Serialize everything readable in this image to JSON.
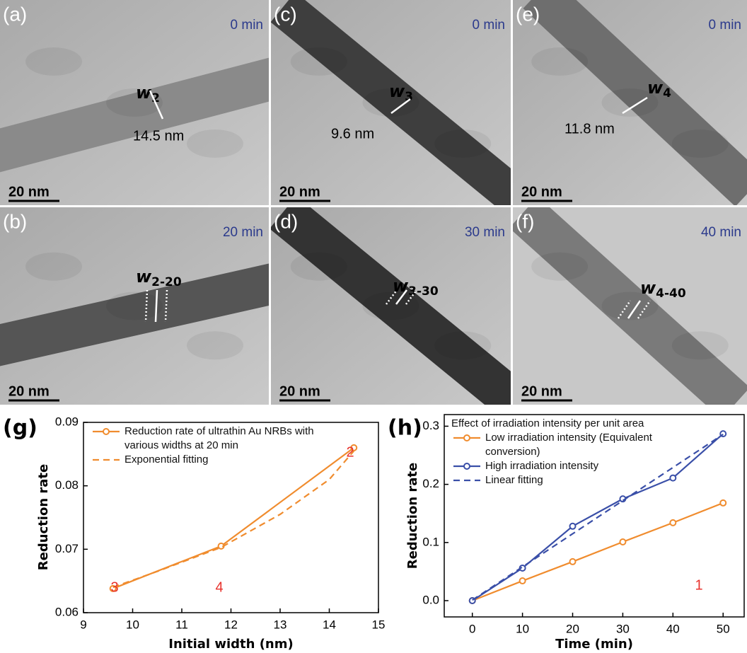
{
  "panels": [
    {
      "label": "(a)",
      "time": "0 min",
      "symbol": "w",
      "subscript": "2",
      "measure": "14.5 nm",
      "scale": "20 nm"
    },
    {
      "label": "(c)",
      "time": "0 min",
      "symbol": "w",
      "subscript": "3",
      "measure": "9.6 nm",
      "scale": "20 nm"
    },
    {
      "label": "(e)",
      "time": "0 min",
      "symbol": "w",
      "subscript": "4",
      "measure": "11.8 nm",
      "scale": "20 nm"
    },
    {
      "label": "(b)",
      "time": "20 min",
      "symbol": "w",
      "subscript": "2-20",
      "scale": "20 nm"
    },
    {
      "label": "(d)",
      "time": "30 min",
      "symbol": "w",
      "subscript": "3-30",
      "scale": "20 nm"
    },
    {
      "label": "(f)",
      "time": "40 min",
      "symbol": "w",
      "subscript": "4-40",
      "scale": "20 nm"
    }
  ],
  "chart_data": [
    {
      "type": "line",
      "panel": "(g)",
      "x_label": "Initial width (nm)",
      "y_label": "Reduction rate",
      "xlim": [
        9,
        15
      ],
      "ylim": [
        0.06,
        0.09
      ],
      "xticks": [
        9,
        10,
        11,
        12,
        13,
        14,
        15
      ],
      "yticks": [
        0.06,
        0.07,
        0.08,
        0.09
      ],
      "legend": "upper left",
      "series": [
        {
          "name": "Reduction rate of ultrathin Au NRBs with various widths at 20 min",
          "color": "#f08c2e",
          "dashed": false,
          "markers": true,
          "x": [
            9.6,
            11.8,
            14.5
          ],
          "values": [
            0.0638,
            0.0705,
            0.086
          ]
        },
        {
          "name": "Exponential fitting",
          "color": "#f08c2e",
          "dashed": true,
          "markers": false,
          "x": [
            9.6,
            10.5,
            11.8,
            13,
            14,
            14.5
          ],
          "values": [
            0.064,
            0.0665,
            0.0703,
            0.0755,
            0.081,
            0.0855
          ]
        }
      ],
      "annotations": [
        "3",
        "4",
        "2"
      ]
    },
    {
      "type": "line",
      "panel": "(h)",
      "x_label": "Time (min)",
      "y_label": "Reduction rate",
      "xlim": [
        -5.6,
        54.2
      ],
      "ylim": [
        -0.028,
        0.32
      ],
      "xticks": [
        0,
        10,
        20,
        30,
        40,
        50
      ],
      "yticks": [
        {
          "value": 0,
          "label": "0.0"
        },
        0.1,
        0.2,
        0.3
      ],
      "legend": "upper left",
      "legend_title": "Effect of irradiation intensity per unit area",
      "series": [
        {
          "name": "Low irradiation intensity (Equivalent conversion)",
          "color": "#f08c2e",
          "dashed": false,
          "markers": true,
          "x": [
            0,
            10,
            20,
            30,
            40,
            50
          ],
          "values": [
            0,
            0.034,
            0.067,
            0.101,
            0.134,
            0.168
          ]
        },
        {
          "name": "High irradiation intensity",
          "color": "#3a4fa8",
          "dashed": false,
          "markers": true,
          "x": [
            0,
            10,
            20,
            30,
            40,
            50
          ],
          "values": [
            0,
            0.056,
            0.128,
            0.175,
            0.211,
            0.287
          ]
        },
        {
          "name": "Linear fitting",
          "color": "#3a4fa8",
          "dashed": true,
          "markers": false,
          "x": [
            0,
            50
          ],
          "values": [
            0.001,
            0.286
          ]
        }
      ],
      "annotations": [
        "1"
      ]
    }
  ]
}
